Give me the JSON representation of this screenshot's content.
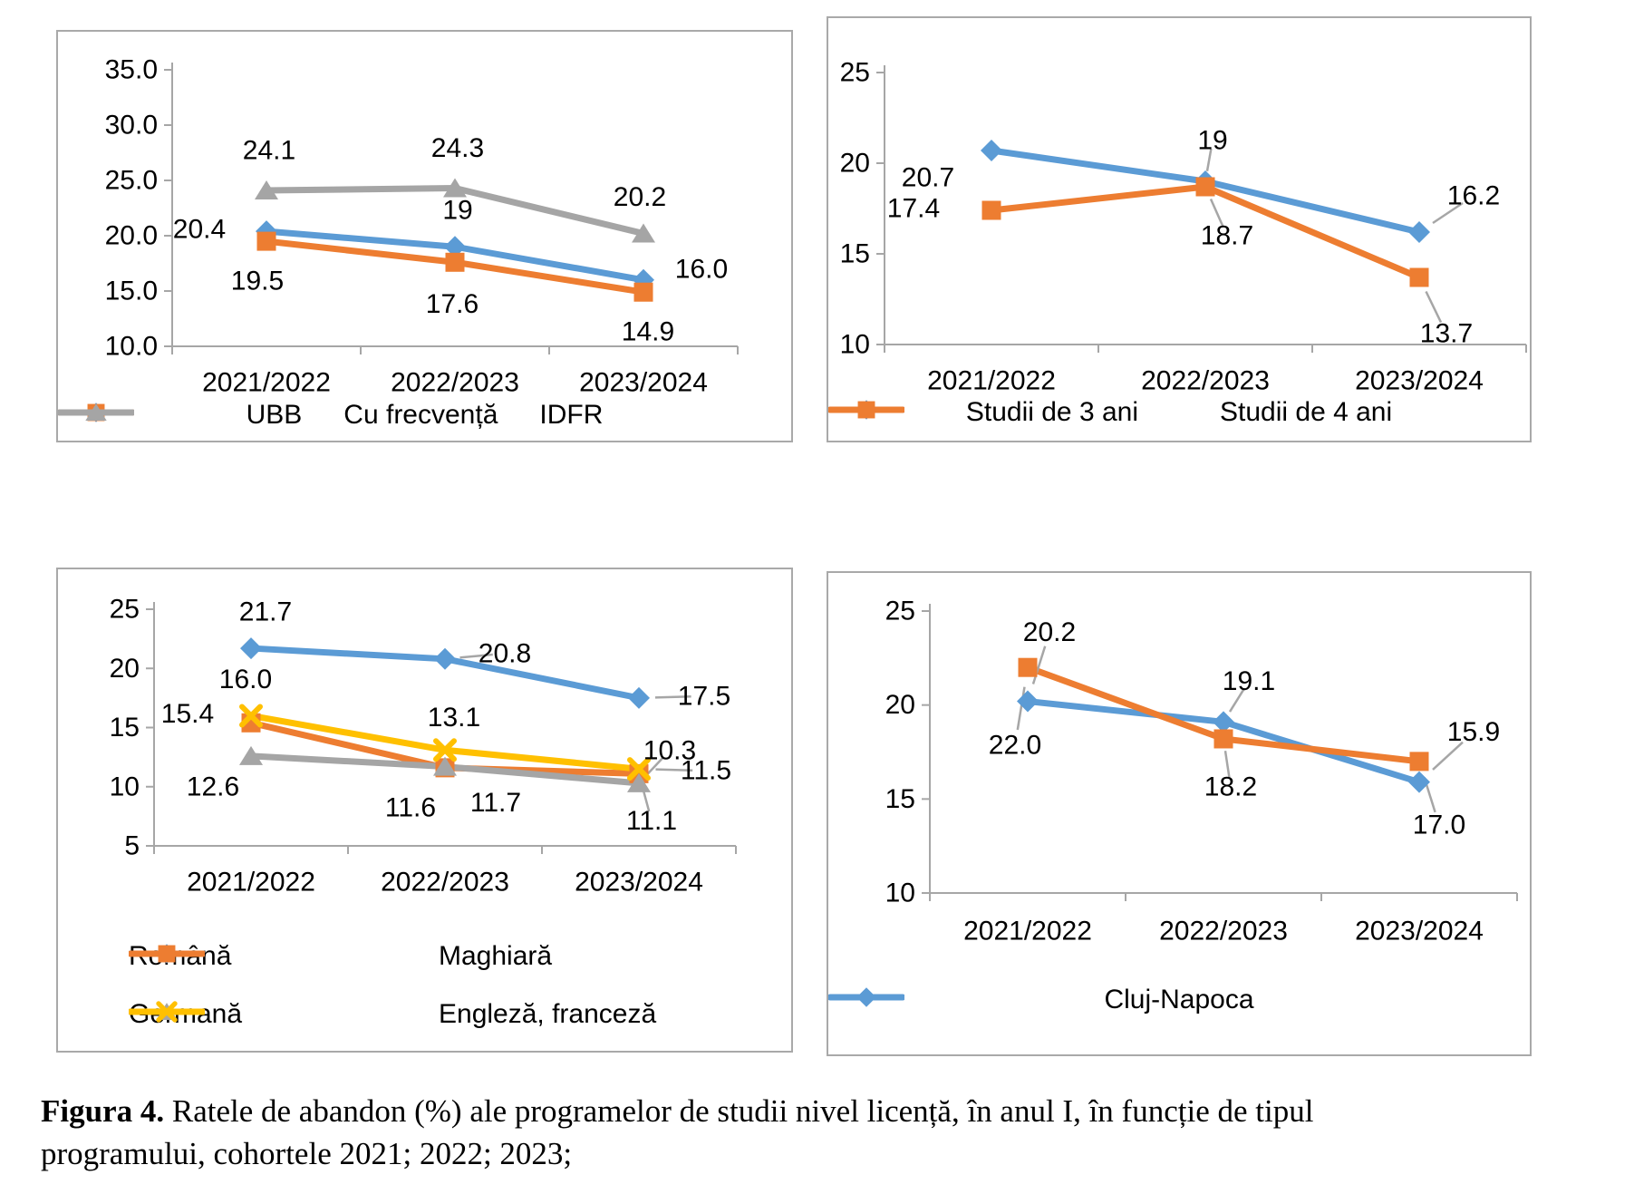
{
  "caption": {
    "bold": "Figura 4.",
    "line1_rest": " Ratele de abandon (%) ale programelor de studii nivel licență, în anul I, în funcție de tipul",
    "line2": "programului, cohortele 2021; 2022; 2023;"
  },
  "colors": {
    "blue": "#5B9BD5",
    "orange": "#ED7D31",
    "gray": "#A5A5A5",
    "yellow": "#FFC000",
    "axis": "#A6A6A6",
    "leader": "#A6A6A6",
    "border": "#A9A9A9",
    "text": "#000000"
  },
  "chart_data": [
    {
      "id": "abandon-ubb-frecventa-idfr",
      "type": "line",
      "title": "",
      "xlabel": "",
      "ylabel": "",
      "categories": [
        "2021/2022",
        "2022/2023",
        "2023/2024"
      ],
      "series": [
        {
          "name": "UBB",
          "color_key": "blue",
          "marker": "diamond",
          "values": [
            20.4,
            19,
            16.0
          ],
          "labels": [
            "20.4",
            "19",
            "16.0"
          ],
          "in_legend": true
        },
        {
          "name": "Cu frecvență",
          "color_key": "orange",
          "marker": "square",
          "values": [
            19.5,
            17.6,
            14.9
          ],
          "labels": [
            "19.5",
            "17.6",
            "14.9"
          ],
          "in_legend": true
        },
        {
          "name": "IDFR",
          "color_key": "gray",
          "marker": "triangle",
          "values": [
            24.1,
            24.3,
            20.2
          ],
          "labels": [
            "24.1",
            "24.3",
            "20.2"
          ],
          "in_legend": true
        }
      ],
      "ylim": [
        10,
        35
      ],
      "yticks": [
        "35.0",
        "30.0",
        "25.0",
        "20.0",
        "15.0",
        "10.0"
      ],
      "grid": false,
      "legend_position": "bottom"
    },
    {
      "id": "abandon-durata-studii",
      "type": "line",
      "title": "",
      "xlabel": "",
      "ylabel": "",
      "categories": [
        "2021/2022",
        "2022/2023",
        "2023/2024"
      ],
      "series": [
        {
          "name": "Studii de 3 ani",
          "color_key": "blue",
          "marker": "diamond",
          "values": [
            20.7,
            19,
            16.2
          ],
          "labels": [
            "20.7",
            "19",
            "16.2"
          ],
          "in_legend": true
        },
        {
          "name": "Studii de 4 ani",
          "color_key": "orange",
          "marker": "square",
          "values": [
            17.4,
            18.7,
            13.7
          ],
          "labels": [
            "17.4",
            "18.7",
            "13.7"
          ],
          "in_legend": true
        }
      ],
      "ylim": [
        10,
        25
      ],
      "yticks": [
        "25",
        "20",
        "15",
        "10"
      ],
      "grid": false,
      "legend_position": "bottom"
    },
    {
      "id": "abandon-limba-predare",
      "type": "line",
      "title": "",
      "xlabel": "",
      "ylabel": "",
      "categories": [
        "2021/2022",
        "2022/2023",
        "2023/2024"
      ],
      "series": [
        {
          "name": "Română",
          "color_key": "blue",
          "marker": "diamond",
          "values": [
            21.7,
            20.8,
            17.5
          ],
          "labels": [
            "21.7",
            "20.8",
            "17.5"
          ],
          "in_legend": true
        },
        {
          "name": "Maghiară",
          "color_key": "orange",
          "marker": "square",
          "values": [
            15.4,
            11.6,
            11.1
          ],
          "labels": [
            "15.4",
            "11.6",
            "11.1"
          ],
          "in_legend": true
        },
        {
          "name": "Germană",
          "color_key": "gray",
          "marker": "triangle",
          "values": [
            12.6,
            11.7,
            10.3
          ],
          "labels": [
            "12.6",
            "11.7",
            "10.3"
          ],
          "in_legend": true
        },
        {
          "name": "Engleză, franceză",
          "color_key": "yellow",
          "marker": "x",
          "values": [
            16.0,
            13.1,
            11.5
          ],
          "labels": [
            "16.0",
            "13.1",
            "11.5"
          ],
          "in_legend": true
        }
      ],
      "ylim": [
        5,
        25
      ],
      "yticks": [
        "25",
        "20",
        "15",
        "10",
        "5"
      ],
      "grid": false,
      "legend_position": "bottom"
    },
    {
      "id": "abandon-cluj-napoca",
      "type": "line",
      "title": "",
      "xlabel": "",
      "ylabel": "",
      "categories": [
        "2021/2022",
        "2022/2023",
        "2023/2024"
      ],
      "series": [
        {
          "name": "Cluj-Napoca",
          "color_key": "blue",
          "marker": "diamond",
          "values": [
            20.2,
            19.1,
            15.9
          ],
          "labels": [
            "20.2",
            "19.1",
            "15.9"
          ],
          "in_legend": true
        },
        {
          "name": "",
          "color_key": "orange",
          "marker": "square",
          "values": [
            22.0,
            18.2,
            17.0
          ],
          "labels": [
            "22.0",
            "18.2",
            "17.0"
          ],
          "in_legend": false
        }
      ],
      "ylim": [
        10,
        25
      ],
      "yticks": [
        "25",
        "20",
        "15",
        "10"
      ],
      "grid": false,
      "legend_position": "bottom"
    }
  ]
}
